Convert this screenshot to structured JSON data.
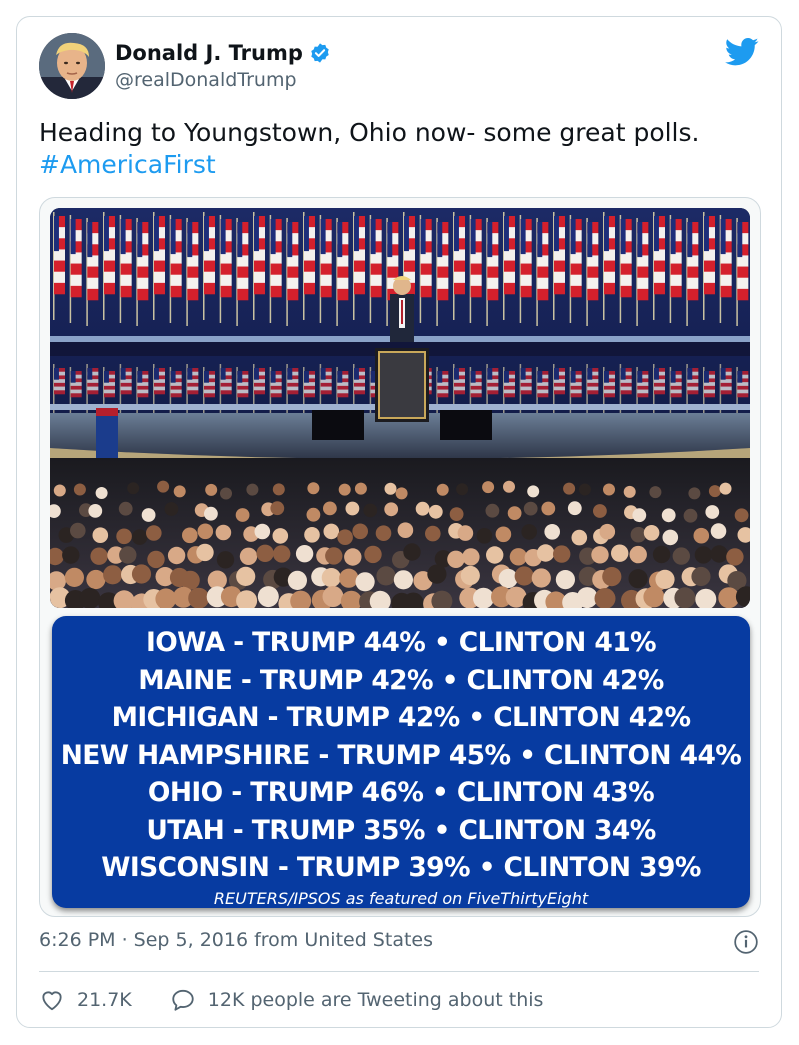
{
  "tweet": {
    "author": {
      "display_name": "Donald J. Trump",
      "handle": "@realDonaldTrump",
      "verified_icon": "verified-badge-icon",
      "avatar_icon": "profile-photo"
    },
    "platform_icon": "twitter-bird-icon",
    "text_line": "Heading to Youngstown, Ohio now- some great polls.",
    "hashtag": "#AmericaFirst",
    "media": {
      "photo_icon": "convention-stage-photo",
      "poll_lines": [
        "IOWA - TRUMP 44% • CLINTON 41%",
        "MAINE - TRUMP 42% • CLINTON 42%",
        "MICHIGAN - TRUMP 42% • CLINTON 42%",
        "NEW HAMPSHIRE - TRUMP 45% • CLINTON 44%",
        "OHIO - TRUMP 46% • CLINTON 43%",
        "UTAH - TRUMP 35% • CLINTON 34%",
        "WISCONSIN - TRUMP 39% • CLINTON 39%"
      ],
      "poll_source": "REUTERS/IPSOS as featured on FiveThirtyEight"
    },
    "timestamp": "6:26 PM · Sep 5, 2016 from United States",
    "info_icon": "info-icon",
    "actions": {
      "likes": "21.7K",
      "like_icon": "heart-icon",
      "conversation": "12K people are Tweeting about this",
      "conversation_icon": "speech-bubble-icon"
    }
  },
  "colors": {
    "accent": "#1d9bf0",
    "poll_background": "#073ba1",
    "secondary_text": "#536471",
    "border": "#cfd9de"
  }
}
